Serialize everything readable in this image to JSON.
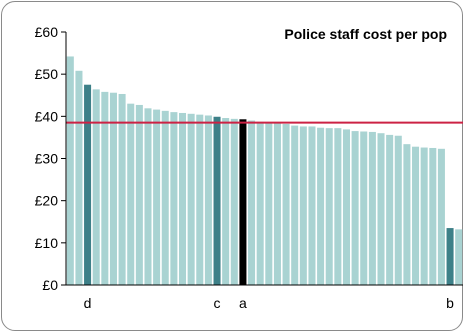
{
  "chart_data": {
    "type": "bar",
    "title": "Police staff cost per pop",
    "xlabel": "",
    "ylabel": "",
    "ylim": [
      0,
      60
    ],
    "y_ticks": [
      "£0",
      "£10",
      "£20",
      "£30",
      "£40",
      "£50",
      "£60"
    ],
    "y_tick_values": [
      0,
      10,
      20,
      30,
      40,
      50,
      60
    ],
    "grid": false,
    "values": [
      54.2,
      50.8,
      47.5,
      46.4,
      45.8,
      45.6,
      45.3,
      43.0,
      42.7,
      41.9,
      41.6,
      41.3,
      41.0,
      40.8,
      40.6,
      40.4,
      40.2,
      39.9,
      39.6,
      39.4,
      39.3,
      39.0,
      38.7,
      38.6,
      38.4,
      38.2,
      37.8,
      37.6,
      37.6,
      37.3,
      37.2,
      37.2,
      36.9,
      36.5,
      36.4,
      36.3,
      36.0,
      35.6,
      35.4,
      33.4,
      32.8,
      32.6,
      32.5,
      32.3,
      13.5,
      13.2
    ],
    "highlighted": [
      {
        "index": 2,
        "label": "d",
        "color": "#3d8088"
      },
      {
        "index": 17,
        "label": "c",
        "color": "#3d8088"
      },
      {
        "index": 20,
        "label": "a",
        "color": "#000000"
      },
      {
        "index": 44,
        "label": "b",
        "color": "#3d8088"
      }
    ],
    "reference_line": {
      "value": 38.5,
      "color": "#cc2244"
    },
    "bar_color": "#a9d3d2"
  }
}
